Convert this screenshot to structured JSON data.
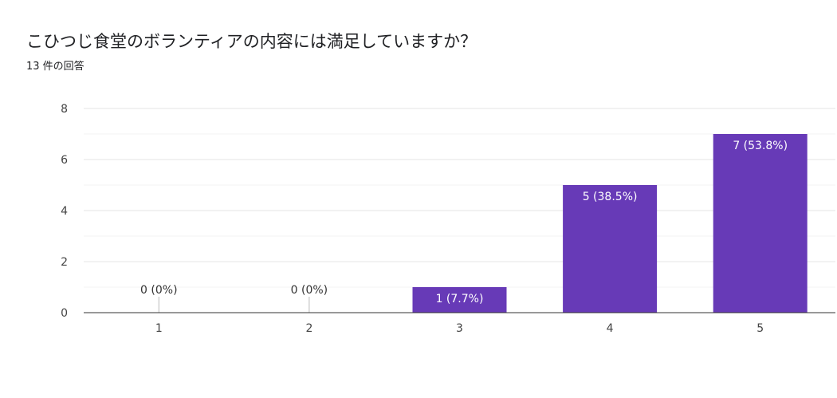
{
  "header": {
    "title": "こひつじ食堂のボランティアの内容には満足していますか？",
    "response_count": "13 件の回答"
  },
  "chart_data": {
    "type": "bar",
    "categories": [
      "1",
      "2",
      "3",
      "4",
      "5"
    ],
    "values": [
      0,
      0,
      1,
      5,
      7
    ],
    "data_labels": [
      "0 (0%)",
      "0 (0%)",
      "1 (7.7%)",
      "5 (38.5%)",
      "7 (53.8%)"
    ],
    "ylim": [
      0,
      8
    ],
    "yticks": [
      0,
      2,
      4,
      6,
      8
    ],
    "grid": true,
    "bar_color": "#673ab7"
  }
}
